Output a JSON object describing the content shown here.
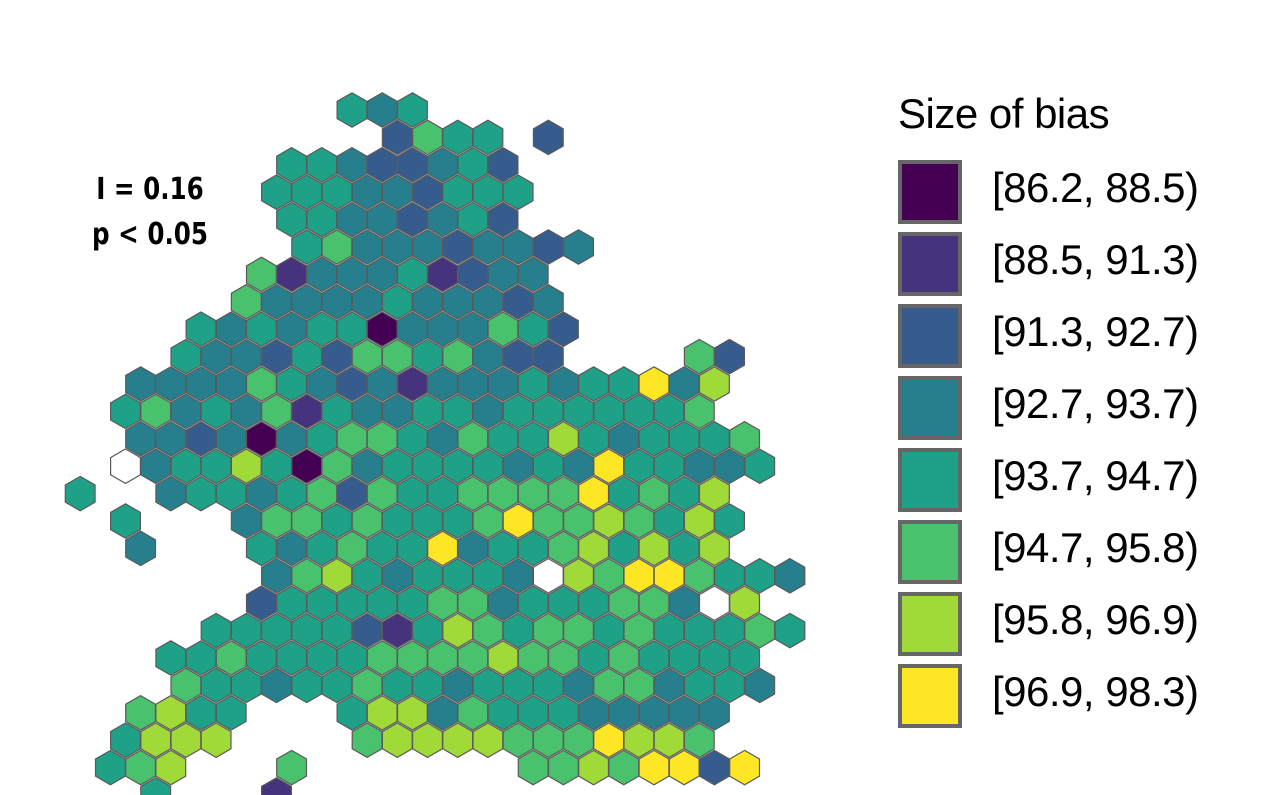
{
  "stats": {
    "moran_i": "I = 0.16",
    "p_value": "p < 0.05"
  },
  "legend": {
    "title": "Size of bias",
    "items": [
      {
        "label": "[86.2, 88.5)",
        "color": "#440154"
      },
      {
        "label": "[88.5, 91.3)",
        "color": "#46337E"
      },
      {
        "label": "[91.3, 92.7)",
        "color": "#365C8D"
      },
      {
        "label": "[92.7, 93.7)",
        "color": "#277F8E"
      },
      {
        "label": "[93.7, 94.7)",
        "color": "#1FA187"
      },
      {
        "label": "[94.7, 95.8)",
        "color": "#4AC16D"
      },
      {
        "label": "[95.8, 96.9)",
        "color": "#A0DA39"
      },
      {
        "label": "[96.9, 98.3)",
        "color": "#FDE725"
      }
    ]
  },
  "hex_rows": [
    "          434          ",
    "           2544 2       ",
    "        44322342        ",
    "       444332444        ",
    "        44332342        ",
    "        4533323323      ",
    "       5133341233       ",
    "      53333433323       ",
    "     4343440333542      ",
    "    4332425545322    52 ",
    "   33335432313334344736",
    "  45343514334434444445",
    "   332303455435446434445",
    "  _344640534444343744334",
    " 4  3443452544555574546",
    "  4   35545444575565464",
    "   3   4345447344564646",
    "       356434443_65775443",
    "       244444553444553_6",
    "     44444214654554544454",
    "    44544445555655454444",
    "    54434454434443553443",
    "   5644   4663544433333",
    "  4666    566665557665",
    "  456   5       55657727",
    "   4   1       "
  ]
}
